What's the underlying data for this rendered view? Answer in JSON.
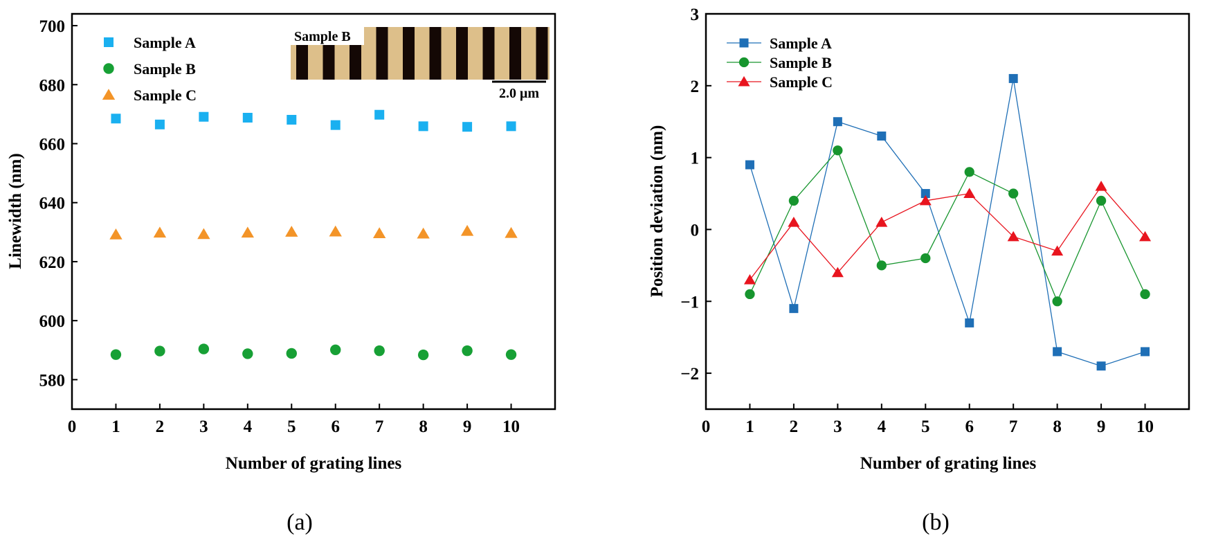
{
  "chart_data": [
    {
      "type": "scatter",
      "panel_label": "(a)",
      "xlabel": "Number of grating lines",
      "ylabel": "Linewidth (nm)",
      "xlim": [
        0,
        11
      ],
      "ylim": [
        570,
        704
      ],
      "x_ticks": [
        0,
        1,
        2,
        3,
        4,
        5,
        6,
        7,
        8,
        9,
        10
      ],
      "y_ticks": [
        580,
        600,
        620,
        640,
        660,
        680,
        700
      ],
      "legend_position": "top-left",
      "grid": false,
      "x": [
        1,
        2,
        3,
        4,
        5,
        6,
        7,
        8,
        9,
        10
      ],
      "series": [
        {
          "name": "Sample A",
          "marker": "square",
          "color": "#1ab0f0",
          "values": [
            668.5,
            666.5,
            669.1,
            668.8,
            668.1,
            666.3,
            669.8,
            665.9,
            665.7,
            665.9
          ]
        },
        {
          "name": "Sample B",
          "marker": "circle",
          "color": "#17a035",
          "values": [
            588.5,
            589.7,
            590.4,
            588.8,
            588.9,
            590.1,
            589.8,
            588.4,
            589.8,
            588.5
          ]
        },
        {
          "name": "Sample C",
          "marker": "triangle",
          "color": "#f39428",
          "values": [
            629.2,
            629.8,
            629.3,
            629.8,
            630.1,
            630.2,
            629.6,
            629.5,
            630.4,
            629.7
          ]
        }
      ],
      "inset": {
        "label": "Sample B",
        "scale_bar_label": "2.0 μm",
        "stripe_color": "#ddbf8a",
        "line_color": "#140805"
      }
    },
    {
      "type": "line",
      "panel_label": "(b)",
      "xlabel": "Number of grating lines",
      "ylabel": "Position deviation (nm)",
      "xlim": [
        0,
        11
      ],
      "ylim": [
        -2.5,
        3
      ],
      "x_ticks": [
        0,
        1,
        2,
        3,
        4,
        5,
        6,
        7,
        8,
        9,
        10
      ],
      "y_ticks": [
        -2,
        -1,
        0,
        1,
        2,
        3
      ],
      "legend_position": "top-left",
      "grid": false,
      "x": [
        1,
        2,
        3,
        4,
        5,
        6,
        7,
        8,
        9,
        10
      ],
      "series": [
        {
          "name": "Sample A",
          "marker": "square",
          "color": "#1f6fb6",
          "values": [
            0.9,
            -1.1,
            1.5,
            1.3,
            0.5,
            -1.3,
            2.1,
            -1.7,
            -1.9,
            -1.7
          ]
        },
        {
          "name": "Sample B",
          "marker": "circle",
          "color": "#17952e",
          "values": [
            -0.9,
            0.4,
            1.1,
            -0.5,
            -0.4,
            0.8,
            0.5,
            -1.0,
            0.4,
            -0.9
          ]
        },
        {
          "name": "Sample C",
          "marker": "triangle",
          "color": "#e8141e",
          "values": [
            -0.7,
            0.1,
            -0.6,
            0.1,
            0.4,
            0.5,
            -0.1,
            -0.3,
            0.6,
            -0.1
          ]
        }
      ]
    }
  ]
}
